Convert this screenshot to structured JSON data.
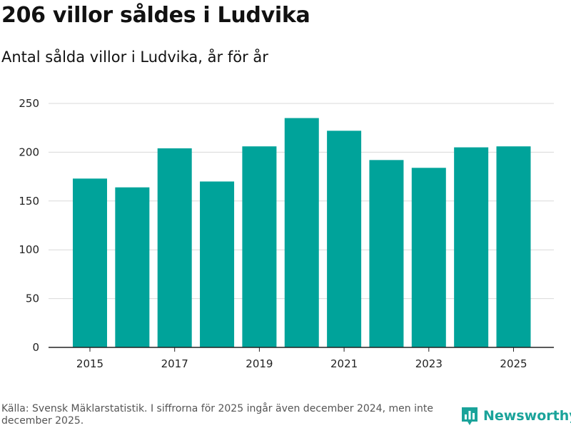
{
  "title": "206 villor såldes i Ludvika",
  "subtitle": "Antal sålda villor i Ludvika, år för år",
  "footer": {
    "source": "Källa: Svensk Mäklarstatistik. I siffrorna för 2025 ingår även december 2024, men inte december 2025.",
    "brand": "Newsworthy",
    "brand_icon": "bar-chart-logo-icon"
  },
  "colors": {
    "bar": "#00a39a",
    "grid": "#d9d9d9",
    "axis": "#222222",
    "brand": "#1aa39a"
  },
  "chart_data": {
    "type": "bar",
    "title": "Antal sålda villor i Ludvika, år för år",
    "xlabel": "",
    "ylabel": "",
    "categories": [
      "2015",
      "2016",
      "2017",
      "2018",
      "2019",
      "2020",
      "2021",
      "2022",
      "2023",
      "2024",
      "2025"
    ],
    "values": [
      173,
      164,
      204,
      170,
      206,
      235,
      222,
      192,
      184,
      205,
      206
    ],
    "ylim": [
      0,
      250
    ],
    "yticks": [
      0,
      50,
      100,
      150,
      200,
      250
    ],
    "xtick_labels": [
      "2015",
      "2017",
      "2019",
      "2021",
      "2023",
      "2025"
    ],
    "grid": true
  }
}
